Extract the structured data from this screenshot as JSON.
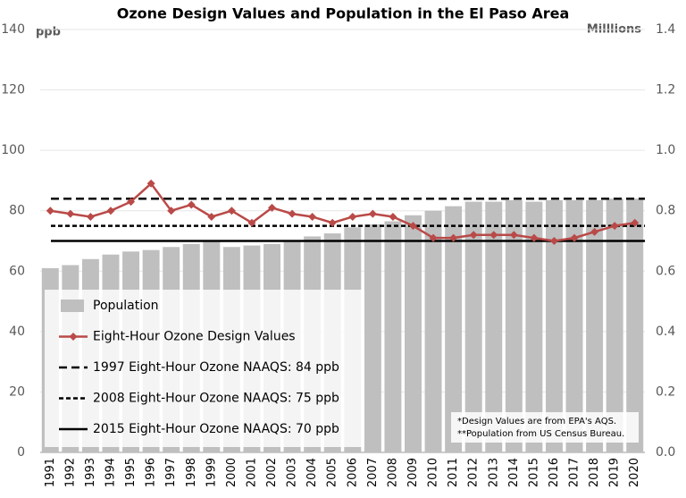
{
  "chart_data": {
    "type": "bar-line",
    "title": "Ozone Design Values and Population in the El Paso Area",
    "y_unit": "ppb",
    "y2_unit": "Milllions",
    "categories": [
      "1991",
      "1992",
      "1993",
      "1994",
      "1995",
      "1996",
      "1997",
      "1998",
      "1999",
      "2000",
      "2001",
      "2002",
      "2003",
      "2004",
      "2005",
      "2006",
      "2007",
      "2008",
      "2009",
      "2010",
      "2011",
      "2012",
      "2013",
      "2014",
      "2015",
      "2016",
      "2017",
      "2018",
      "2019",
      "2020"
    ],
    "series": [
      {
        "name": "Population",
        "kind": "bar",
        "axis": "y2",
        "color": "#bfbfbf",
        "values": [
          0.61,
          0.62,
          0.64,
          0.655,
          0.665,
          0.67,
          0.68,
          0.69,
          0.7,
          0.68,
          0.685,
          0.69,
          0.7,
          0.715,
          0.725,
          0.745,
          0.755,
          0.765,
          0.785,
          0.8,
          0.815,
          0.83,
          0.83,
          0.835,
          0.83,
          0.835,
          0.835,
          0.835,
          0.84,
          0.84
        ]
      },
      {
        "name": "Eight-Hour Ozone Design Values",
        "kind": "line",
        "color": "#b94a48",
        "values": [
          80,
          79,
          78,
          80,
          83,
          89,
          80,
          82,
          78,
          80,
          76,
          81,
          79,
          78,
          76,
          78,
          79,
          78,
          75,
          71,
          71,
          72,
          72,
          72,
          71,
          70,
          71,
          73,
          75,
          76
        ]
      }
    ],
    "reference_lines": [
      {
        "name": "1997 Eight-Hour Ozone NAAQS: 84 ppb",
        "value": 84,
        "dash": "long"
      },
      {
        "name": "2008 Eight-Hour Ozone NAAQS: 75 ppb",
        "value": 75,
        "dash": "short"
      },
      {
        "name": "2015 Eight-Hour Ozone NAAQS: 70 ppb",
        "value": 70,
        "dash": "solid"
      }
    ],
    "ylim": [
      0,
      140
    ],
    "yticks": [
      0,
      20,
      40,
      60,
      80,
      100,
      120,
      140
    ],
    "y2lim": [
      0,
      1.4
    ],
    "y2ticks": [
      {
        "value": 0,
        "label": "0.0"
      },
      0.2,
      0.4,
      0.6,
      0.8,
      {
        "value": 1,
        "label": "1.0"
      },
      1.2,
      1.4
    ],
    "grid": true,
    "notes": [
      "*Design Values are from EPA's AQS.",
      "**Population from US Census Bureau."
    ]
  }
}
